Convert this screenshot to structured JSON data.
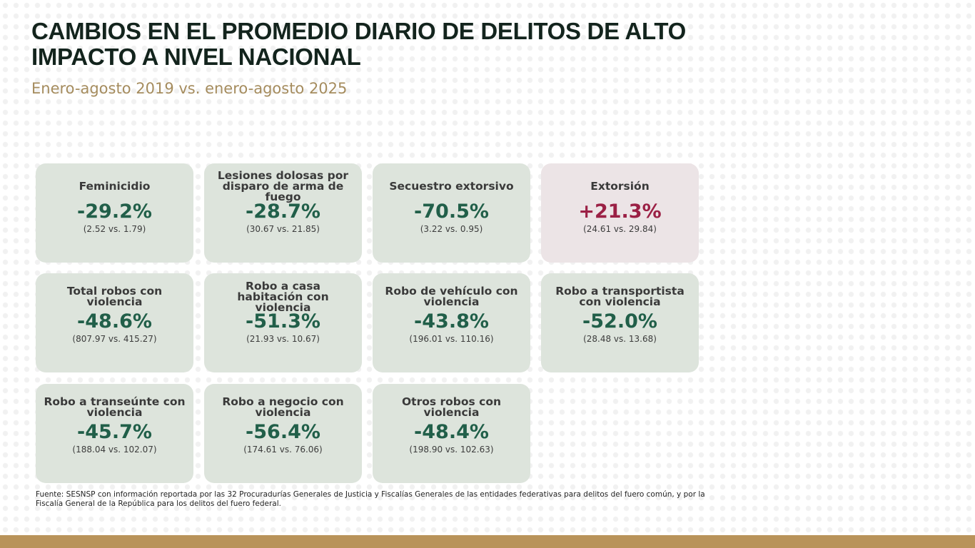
{
  "header": {
    "title": "CAMBIOS EN EL PROMEDIO DIARIO DE DELITOS DE ALTO IMPACTO A NIVEL NACIONAL",
    "subtitle": "Enero-agosto 2019 vs. enero-agosto 2025"
  },
  "cards": [
    {
      "label": "Feminicidio",
      "change": "-29.2%",
      "values": "(2.52 vs. 1.79)",
      "trend": "decrease"
    },
    {
      "label": "Lesiones dolosas por disparo de arma de fuego",
      "change": "-28.7%",
      "values": "(30.67 vs. 21.85)",
      "trend": "decrease"
    },
    {
      "label": "Secuestro extorsivo",
      "change": "-70.5%",
      "values": "(3.22 vs. 0.95)",
      "trend": "decrease"
    },
    {
      "label": "Extorsión",
      "change": "+21.3%",
      "values": "(24.61 vs. 29.84)",
      "trend": "increase"
    },
    {
      "label": "Total robos con violencia",
      "change": "-48.6%",
      "values": "(807.97 vs. 415.27)",
      "trend": "decrease"
    },
    {
      "label": "Robo a casa habitación con violencia",
      "change": "-51.3%",
      "values": "(21.93 vs. 10.67)",
      "trend": "decrease"
    },
    {
      "label": "Robo de vehículo con violencia",
      "change": "-43.8%",
      "values": "(196.01 vs. 110.16)",
      "trend": "decrease"
    },
    {
      "label": "Robo a transportista con violencia",
      "change": "-52.0%",
      "values": "(28.48 vs. 13.68)",
      "trend": "decrease"
    },
    {
      "label": "Robo a transeúnte con violencia",
      "change": "-45.7%",
      "values": "(188.04 vs. 102.07)",
      "trend": "decrease"
    },
    {
      "label": "Robo a negocio con violencia",
      "change": "-56.4%",
      "values": "(174.61 vs. 76.06)",
      "trend": "decrease"
    },
    {
      "label": "Otros robos con violencia",
      "change": "-48.4%",
      "values": "(198.90 vs. 102.63)",
      "trend": "decrease"
    }
  ],
  "footer": {
    "source": "Fuente: SESNSP con información reportada por las 32 Procuradurías Generales de Justicia y Fiscalías Generales de las entidades federativas para delitos del fuero común, y por la Fiscalía General de la República para los delitos del fuero federal."
  },
  "colors": {
    "decrease": "#215f49",
    "increase": "#9b2045",
    "card_background": "#dde4dc",
    "card_background_increase": "#ece4e6",
    "subtitle": "#a58c5e",
    "footer_bar": "#b9935a"
  }
}
